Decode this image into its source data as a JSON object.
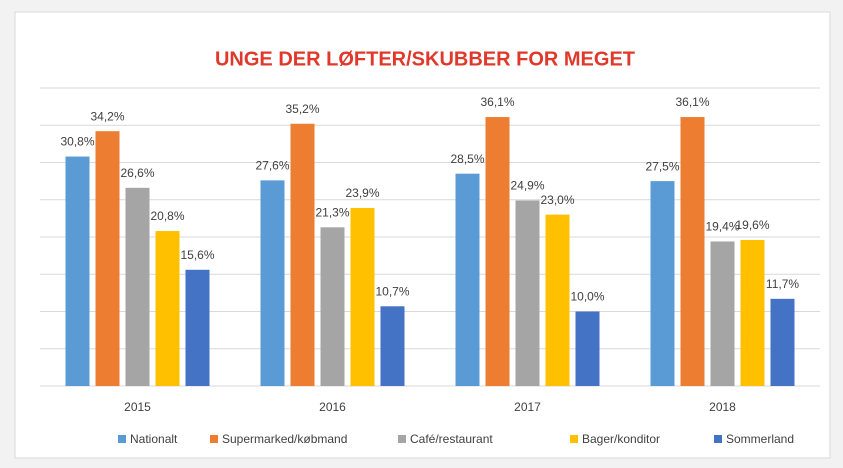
{
  "chart_data": {
    "type": "bar",
    "title": "UNGE DER LØFTER/SKUBBER FOR MEGET",
    "categories": [
      "2015",
      "2016",
      "2017",
      "2018"
    ],
    "series": [
      {
        "name": "Nationalt",
        "color": "#5b9bd5",
        "values": [
          30.8,
          27.6,
          28.5,
          27.5
        ],
        "value_labels": [
          "30,8%",
          "27,6%",
          "28,5%",
          "27,5%"
        ]
      },
      {
        "name": "Supermarked/købmand",
        "color": "#ed7d31",
        "values": [
          34.2,
          35.2,
          36.1,
          36.1
        ],
        "value_labels": [
          "34,2%",
          "35,2%",
          "36,1%",
          "36,1%"
        ]
      },
      {
        "name": "Café/restaurant",
        "color": "#a5a5a5",
        "values": [
          26.6,
          21.3,
          24.9,
          19.4
        ],
        "value_labels": [
          "26,6%",
          "21,3%",
          "24,9%",
          "19,4%"
        ]
      },
      {
        "name": "Bager/konditor",
        "color": "#ffc000",
        "values": [
          20.8,
          23.9,
          23.0,
          19.6
        ],
        "value_labels": [
          "20,8%",
          "23,9%",
          "23,0%",
          "19,6%"
        ]
      },
      {
        "name": "Sommerland",
        "color": "#4472c4",
        "values": [
          15.6,
          10.7,
          10.0,
          11.7
        ],
        "value_labels": [
          "15,6%",
          "10,7%",
          "10,0%",
          "11,7%"
        ]
      }
    ],
    "ylim": [
      0,
      40
    ],
    "yticks": [
      0,
      5,
      10,
      15,
      20,
      25,
      30,
      35,
      40
    ],
    "grid": true,
    "legend": "bottom"
  }
}
